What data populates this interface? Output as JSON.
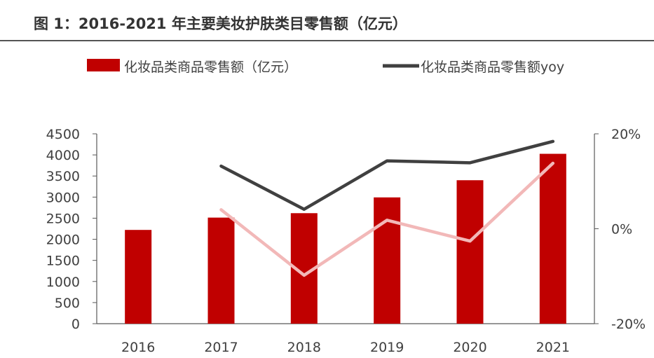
{
  "figure_title": "图 1：2016-2021 年主要美妆护肤类目零售额（亿元）",
  "chart_data": {
    "type": "bar",
    "categories": [
      "2016",
      "2017",
      "2018",
      "2019",
      "2020",
      "2021"
    ],
    "series": [
      {
        "name": "化妆品类商品零售额（亿元）",
        "type": "bar",
        "axis": "left",
        "color": "#c00000",
        "values": [
          2222,
          2514,
          2619,
          2993,
          3400,
          4026
        ]
      },
      {
        "name": "化妆品类商品零售额yoy",
        "type": "line",
        "axis": "right",
        "color": "#404040",
        "values": [
          null,
          13.2,
          4.1,
          14.3,
          13.9,
          18.4
        ]
      },
      {
        "type": "line",
        "axis": "right",
        "color": "#f2b8b8",
        "values": [
          null,
          4.0,
          -9.8,
          1.8,
          -2.6,
          13.8
        ]
      }
    ],
    "y_left": {
      "ylim": [
        0,
        4500
      ],
      "ticks": [
        "0",
        "500",
        "1000",
        "1500",
        "2000",
        "2500",
        "3000",
        "3500",
        "4000",
        "4500"
      ]
    },
    "y_right": {
      "ylim": [
        -20,
        20
      ],
      "ticks": [
        "-20%",
        "0%",
        "20%"
      ]
    },
    "legend_position": "top",
    "grid": false
  }
}
